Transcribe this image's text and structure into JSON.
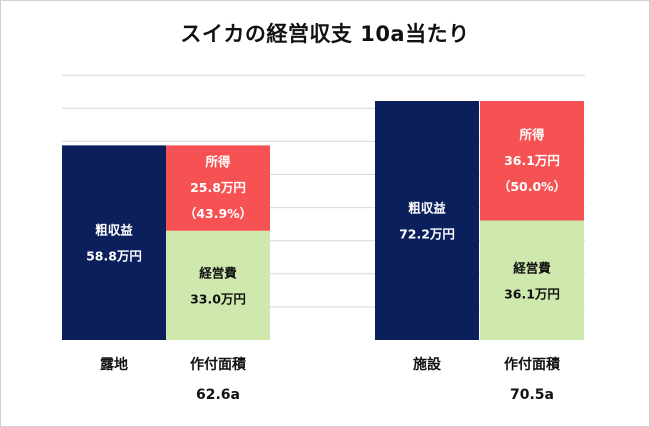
{
  "title": "スイカの経営収支 10a当たり",
  "chart_data": {
    "type": "bar",
    "title": "スイカの経営収支 10a当たり",
    "unit": "万円",
    "ylim": [
      0,
      80
    ],
    "grid": true,
    "colors": {
      "gross": "#0b1f5c",
      "income": "#f65254",
      "cost": "#cfe8ad",
      "grid": "#d9d9d9"
    },
    "groups": [
      {
        "category": "露地",
        "gross": {
          "label": "粗収益",
          "value": 58.8,
          "value_text": "58.8万円"
        },
        "income": {
          "label": "所得",
          "value": 25.8,
          "value_text": "25.8万円",
          "pct_text": "（43.9%）"
        },
        "cost": {
          "label": "経営費",
          "value": 33.0,
          "value_text": "33.0万円"
        },
        "area_label": "作付面積",
        "area_value": "62.6a"
      },
      {
        "category": "施設",
        "gross": {
          "label": "粗収益",
          "value": 72.2,
          "value_text": "72.2万円"
        },
        "income": {
          "label": "所得",
          "value": 36.1,
          "value_text": "36.1万円",
          "pct_text": "（50.0%）"
        },
        "cost": {
          "label": "経営費",
          "value": 36.1,
          "value_text": "36.1万円"
        },
        "area_label": "作付面積",
        "area_value": "70.5a"
      }
    ]
  }
}
